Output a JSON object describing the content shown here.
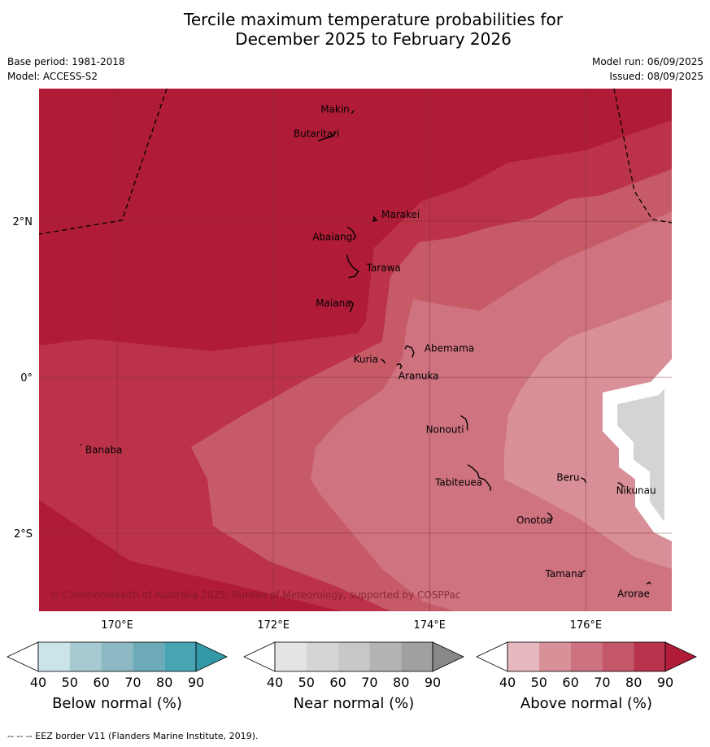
{
  "title_line1": "Tercile maximum temperature probabilities for",
  "title_line2": "December 2025 to February 2026",
  "base_period": "Base period: 1981-2018",
  "model": "Model: ACCESS-S2",
  "model_run": "Model run: 06/09/2025",
  "issued": "Issued: 08/09/2025",
  "copyright": "© Commonwealth of Australia 2025, Bureau of Meteorology, supported by COSPPac",
  "footnote": "--  --  -- EEZ border V11 (Flanders Marine Institute, 2019).",
  "map": {
    "lon_range": [
      169,
      177.1
    ],
    "lat_range": [
      -3,
      3.7
    ],
    "lon_ticks": [
      {
        "value": 170,
        "label": "170°E"
      },
      {
        "value": 172,
        "label": "172°E"
      },
      {
        "value": 174,
        "label": "174°E"
      },
      {
        "value": 176,
        "label": "176°E"
      }
    ],
    "lat_ticks": [
      {
        "value": 2,
        "label": "2°N"
      },
      {
        "value": 0,
        "label": "0°"
      },
      {
        "value": -2,
        "label": "2°S"
      }
    ],
    "colors": {
      "above_90": "#b01c37",
      "above_80": "#bc3349",
      "above_70": "#c65a67",
      "above_60": "#cf7380",
      "above_50": "#d88f98",
      "no_data": "#d4d4d4"
    },
    "places": [
      {
        "name": "Makin",
        "lon": 173.0,
        "lat": 3.38
      },
      {
        "name": "Butaritari",
        "lon": 172.8,
        "lat": 3.07
      },
      {
        "name": "Marakei",
        "lon": 173.3,
        "lat": 2.0
      },
      {
        "name": "Abaiang",
        "lon": 173.0,
        "lat": 1.8
      },
      {
        "name": "Tarawa",
        "lon": 173.15,
        "lat": 1.4
      },
      {
        "name": "Maiana",
        "lon": 173.0,
        "lat": 0.92
      },
      {
        "name": "Abemama",
        "lon": 173.85,
        "lat": 0.38
      },
      {
        "name": "Kuria",
        "lon": 173.4,
        "lat": 0.23
      },
      {
        "name": "Aranuka",
        "lon": 173.62,
        "lat": 0.16
      },
      {
        "name": "Banaba",
        "lon": 169.53,
        "lat": -0.86
      },
      {
        "name": "Nonouti",
        "lon": 174.42,
        "lat": -0.66
      },
      {
        "name": "Tabiteuea",
        "lon": 174.8,
        "lat": -1.35
      },
      {
        "name": "Beru",
        "lon": 175.98,
        "lat": -1.33
      },
      {
        "name": "Nikunau",
        "lon": 176.45,
        "lat": -1.37
      },
      {
        "name": "Onotoa",
        "lon": 175.55,
        "lat": -1.82
      },
      {
        "name": "Tamana",
        "lon": 175.98,
        "lat": -2.5
      },
      {
        "name": "Arorae",
        "lon": 176.82,
        "lat": -2.65
      }
    ]
  },
  "legends": [
    {
      "title": "Below normal (%)",
      "ticks": [
        "40",
        "50",
        "60",
        "70",
        "80",
        "90"
      ],
      "colors": [
        "#ffffff",
        "#cbe4ea",
        "#a7c9d1",
        "#8cb9c4",
        "#6dabb8",
        "#48a4b3",
        "#3399a8"
      ]
    },
    {
      "title": "Near normal (%)",
      "ticks": [
        "40",
        "50",
        "60",
        "70",
        "80",
        "90"
      ],
      "colors": [
        "#ffffff",
        "#e4e4e4",
        "#d5d5d5",
        "#c8c8c8",
        "#b4b4b4",
        "#a0a0a0",
        "#888888"
      ]
    },
    {
      "title": "Above normal (%)",
      "ticks": [
        "40",
        "50",
        "60",
        "70",
        "80",
        "90"
      ],
      "colors": [
        "#ffffff",
        "#e6b8bf",
        "#d99199",
        "#cc7280",
        "#c4566a",
        "#b8334b",
        "#b01c37"
      ]
    }
  ]
}
